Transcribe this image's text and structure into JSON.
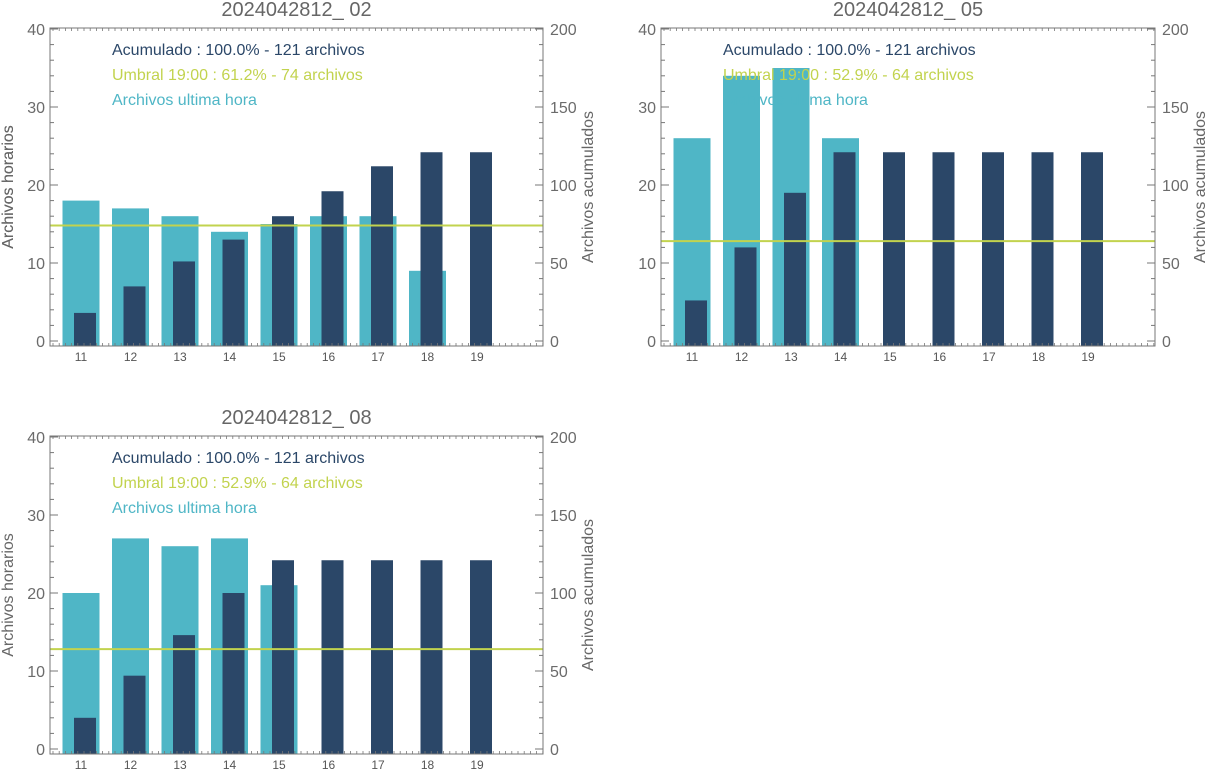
{
  "colors": {
    "hourly": "#4fb6c6",
    "accumulated": "#2b4768",
    "threshold": "#c2d34e",
    "frame": "#777777",
    "text": "#666666"
  },
  "chart_data": [
    {
      "type": "bar",
      "title": "2024042812_ 02",
      "ylabel": "Archivos horarios",
      "y2label": "Archivos acumulados",
      "categories": [
        "11",
        "12",
        "13",
        "14",
        "15",
        "16",
        "17",
        "18",
        "19"
      ],
      "ylim": [
        0,
        40
      ],
      "y2lim": [
        0,
        200
      ],
      "yticks": [
        0,
        10,
        20,
        30,
        40
      ],
      "y2ticks": [
        0,
        50,
        100,
        150,
        200
      ],
      "legend": [
        {
          "text": "Acumulado : 100.0% - 121 archivos",
          "color": "#2b4768"
        },
        {
          "text": "Umbral 19:00 : 61.2% - 74 archivos",
          "color": "#c2d34e"
        },
        {
          "text": "Archivos ultima hora",
          "color": "#4fb6c6"
        }
      ],
      "series": [
        {
          "name": "Archivos ultima hora",
          "axis": "left",
          "values": [
            18,
            17,
            16,
            14,
            15,
            16,
            16,
            9,
            0
          ]
        },
        {
          "name": "Acumulado",
          "axis": "right",
          "values": [
            18,
            35,
            51,
            65,
            80,
            96,
            112,
            121,
            121
          ]
        }
      ],
      "threshold": 74
    },
    {
      "type": "bar",
      "title": "2024042812_ 05",
      "ylabel": "Archivos horarios",
      "y2label": "Archivos acumulados",
      "categories": [
        "11",
        "12",
        "13",
        "14",
        "15",
        "16",
        "17",
        "18",
        "19"
      ],
      "ylim": [
        0,
        40
      ],
      "y2lim": [
        0,
        200
      ],
      "yticks": [
        0,
        10,
        20,
        30,
        40
      ],
      "y2ticks": [
        0,
        50,
        100,
        150,
        200
      ],
      "legend": [
        {
          "text": "Acumulado : 100.0% - 121 archivos",
          "color": "#2b4768"
        },
        {
          "text": "Umbral 19:00 : 52.9% - 64 archivos",
          "color": "#c2d34e"
        },
        {
          "text": "Archivos ultima hora",
          "color": "#4fb6c6"
        }
      ],
      "series": [
        {
          "name": "Archivos ultima hora",
          "axis": "left",
          "values": [
            26,
            34,
            35,
            26,
            0,
            0,
            0,
            0,
            0
          ]
        },
        {
          "name": "Acumulado",
          "axis": "right",
          "values": [
            26,
            60,
            95,
            121,
            121,
            121,
            121,
            121,
            121
          ]
        }
      ],
      "threshold": 64
    },
    {
      "type": "bar",
      "title": "2024042812_ 08",
      "ylabel": "Archivos horarios",
      "y2label": "Archivos acumulados",
      "categories": [
        "11",
        "12",
        "13",
        "14",
        "15",
        "16",
        "17",
        "18",
        "19"
      ],
      "ylim": [
        0,
        40
      ],
      "y2lim": [
        0,
        200
      ],
      "yticks": [
        0,
        10,
        20,
        30,
        40
      ],
      "y2ticks": [
        0,
        50,
        100,
        150,
        200
      ],
      "legend": [
        {
          "text": "Acumulado : 100.0% - 121 archivos",
          "color": "#2b4768"
        },
        {
          "text": "Umbral 19:00 : 52.9% - 64 archivos",
          "color": "#c2d34e"
        },
        {
          "text": "Archivos ultima hora",
          "color": "#4fb6c6"
        }
      ],
      "series": [
        {
          "name": "Archivos ultima hora",
          "axis": "left",
          "values": [
            20,
            27,
            26,
            27,
            21,
            0,
            0,
            0,
            0
          ]
        },
        {
          "name": "Acumulado",
          "axis": "right",
          "values": [
            20,
            47,
            73,
            100,
            121,
            121,
            121,
            121,
            121
          ]
        }
      ],
      "threshold": 64
    }
  ]
}
